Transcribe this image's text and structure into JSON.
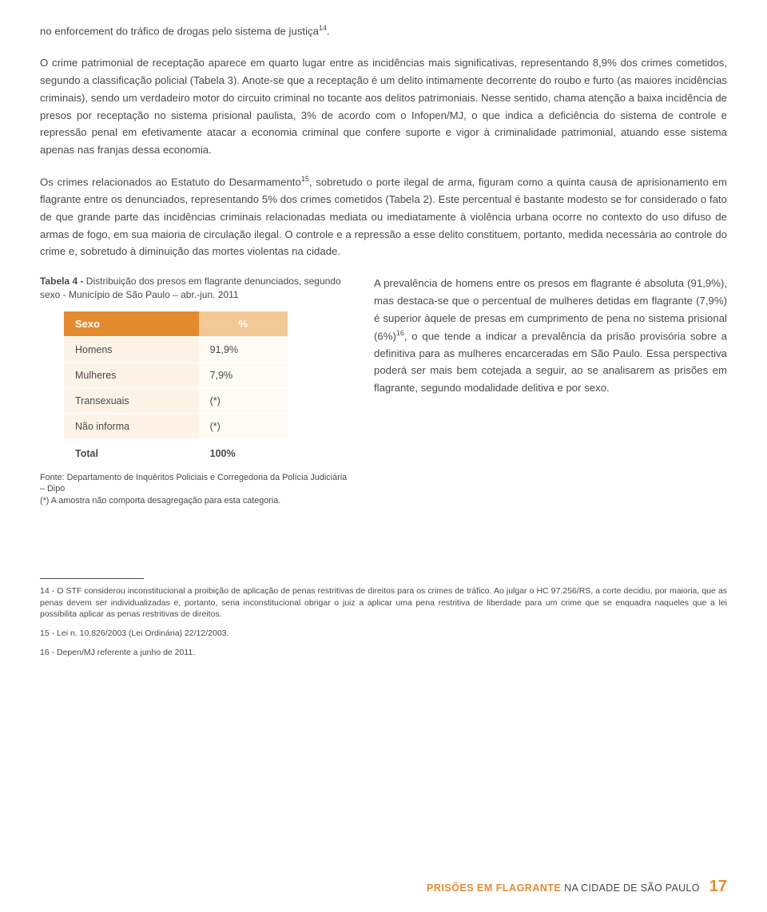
{
  "paragraphs": {
    "p1": "no enforcement do tráfico de drogas pelo sistema de justiça",
    "p1_sup": "14",
    "p1_end": ".",
    "p2": "O crime patrimonial de receptação aparece em quarto lugar entre as incidências mais significativas, representando 8,9% dos crimes cometidos, segundo a classificação policial (Tabela 3). Anote-se que a receptação é um delito intimamente decorrente do roubo e furto (as maiores incidências criminais), sendo um verdadeiro motor do circuito criminal no tocante aos delitos patrimoniais. Nesse sentido, chama atenção a baixa incidência de presos por receptação no sistema prisional paulista, 3% de acordo com o Infopen/MJ, o que indica a deficiência do sistema de controle e repressão penal em efetivamente atacar a economia criminal que confere suporte e vigor à criminalidade patrimonial, atuando esse sistema apenas nas franjas dessa economia.",
    "p3_a": "Os crimes relacionados ao Estatuto do Desarmamento",
    "p3_sup": "15",
    "p3_b": ", sobretudo o porte ilegal de arma, figuram como a quinta causa de aprisionamento em flagrante entre os denunciados, representando 5% dos crimes cometidos (Tabela 2). Este percentual é bastante modesto se for considerado o fato de que grande parte das incidências criminais relacionadas mediata ou imediatamente à violência urbana ocorre no contexto do uso difuso de armas de fogo, em sua maioria de circulação ilegal. O controle e a repressão a esse delito constituem, portanto, medida necessária ao controle do crime e, sobretudo à diminuição das mortes violentas na cidade.",
    "right_a": "A prevalência de homens entre os presos em flagrante é absoluta (91,9%), mas destaca-se que o percentual de mulheres detidas em flagrante (7,9%) é superior àquele de presas em cumprimento de pena no sistema prisional (6%)",
    "right_sup": "16",
    "right_b": ", o que tende a indicar a prevalência da prisão provisória sobre a definitiva para as mulheres encarceradas em São Paulo. Essa perspectiva poderá ser mais bem cotejada a seguir, ao se analisarem as prisões em flagrante, segundo modalidade delitiva e por sexo."
  },
  "table": {
    "caption_bold": "Tabela 4 - ",
    "caption_rest": "Distribuição dos presos em flagrante denunciados, segundo sexo - Município de São Paulo – abr.-jun. 2011",
    "header_left": "Sexo",
    "header_right": "%",
    "rows": [
      {
        "label": "Homens",
        "value": "91,9%"
      },
      {
        "label": "Mulheres",
        "value": "7,9%"
      },
      {
        "label": "Transexuais",
        "value": "(*)"
      },
      {
        "label": "Não informa",
        "value": "(*)"
      }
    ],
    "total_label": "Total",
    "total_value": "100%",
    "source": "Fonte: Departamento de Inquéritos Policiais e Corregedoria da Polícia Judiciária – Dipo",
    "note": "(*) A amostra não comporta desagregação para esta categoria."
  },
  "footnotes": {
    "fn14": "14 - O STF considerou inconstitucional a proibição de aplicação de penas restritivas de direitos para os crimes de tráfico. Ao julgar o HC 97.256/RS, a corte decidiu, por maioria, que as penas devem ser individualizadas e, portanto, seria inconstitucional obrigar o juiz a aplicar uma pena restritiva de liberdade para um crime que se enquadra naqueles que a lei possibilita aplicar as penas restritivas de direitos.",
    "fn15": "15 - Lei n. 10.826/2003 (Lei Ordinária) 22/12/2003.",
    "fn16": "16 - Depen/MJ referente a junho de 2011."
  },
  "footer": {
    "bold": "PRISÕES EM FLAGRANTE",
    "rest": " NA CIDADE DE SÃO PAULO",
    "page": "17"
  },
  "colors": {
    "accent": "#e48b2f",
    "row_bg": "#fdf3e7",
    "row_bg_light": "#fefaf4",
    "header_alt": "#f2c894"
  }
}
